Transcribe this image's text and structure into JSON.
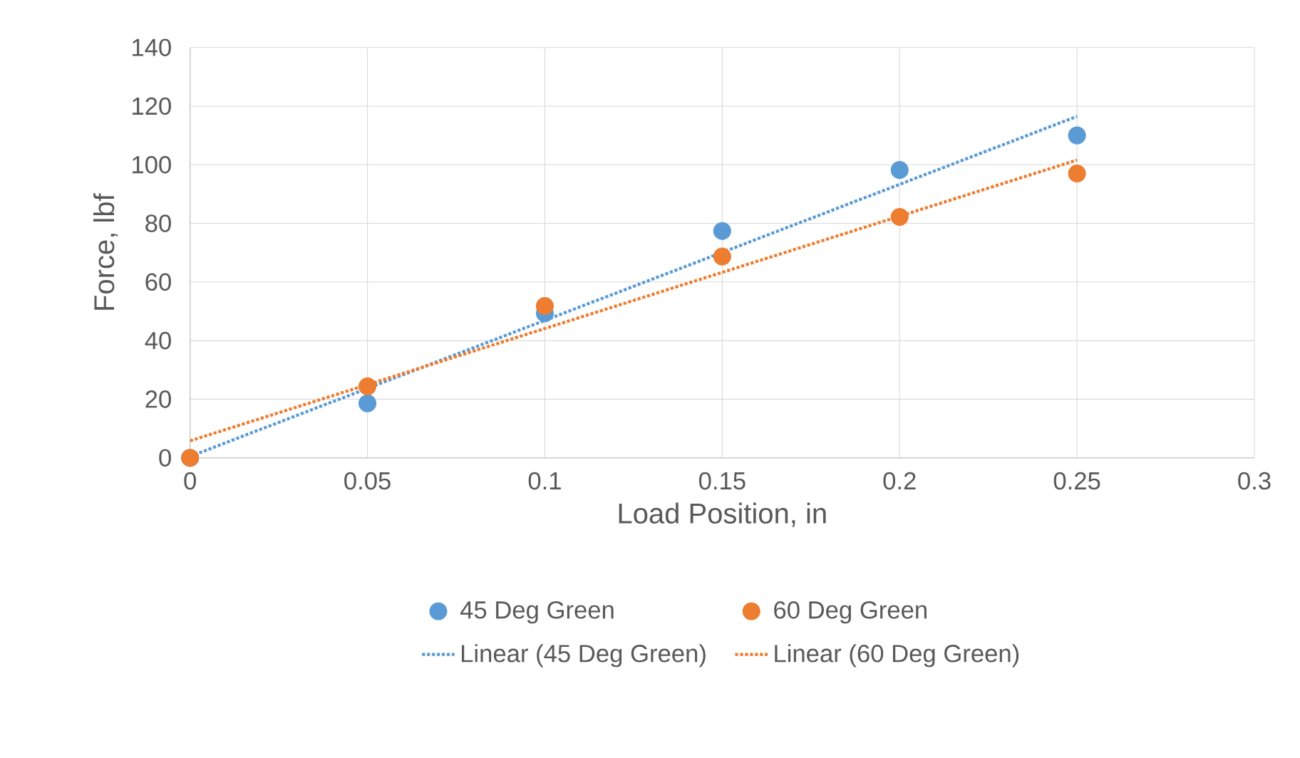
{
  "chart_data": {
    "type": "scatter",
    "xlabel": "Load Position, in",
    "ylabel": "Force, lbf",
    "xlim": [
      0,
      0.3
    ],
    "xticks": [
      0,
      0.05,
      0.1,
      0.15,
      0.2,
      0.25,
      0.3
    ],
    "ylim": [
      0,
      140
    ],
    "yticks": [
      0,
      20,
      40,
      60,
      80,
      100,
      120,
      140
    ],
    "grid": true,
    "legend": "bottom",
    "marker": "circle",
    "series": [
      {
        "name": "45 Deg Green",
        "color": "#5b9bd5",
        "x": [
          0,
          0.05,
          0.1,
          0.15,
          0.2,
          0.25
        ],
        "values": [
          0,
          18.6,
          49.3,
          77.4,
          98.2,
          110
        ]
      },
      {
        "name": "60 Deg Green",
        "color": "#ed7d31",
        "x": [
          0,
          0.05,
          0.1,
          0.15,
          0.2,
          0.25
        ],
        "values": [
          0,
          24.4,
          51.8,
          68.7,
          82.2,
          97
        ]
      },
      {
        "name": "Linear (45 Deg Green)",
        "type": "line",
        "line_style": "dotted",
        "marker": "none",
        "color": "#5b9bd5",
        "x": [
          0,
          0.25
        ],
        "values": [
          0.5,
          116.5
        ]
      },
      {
        "name": "Linear (60 Deg Green)",
        "type": "line",
        "line_style": "dotted",
        "marker": "none",
        "color": "#ed7d31",
        "x": [
          0,
          0.25
        ],
        "values": [
          5.8,
          101.6
        ]
      }
    ]
  }
}
